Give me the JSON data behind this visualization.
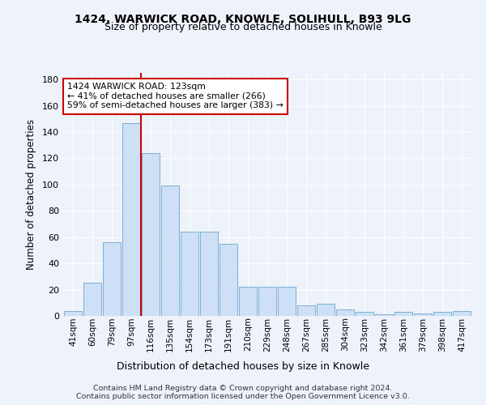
{
  "title_line1": "1424, WARWICK ROAD, KNOWLE, SOLIHULL, B93 9LG",
  "title_line2": "Size of property relative to detached houses in Knowle",
  "xlabel": "Distribution of detached houses by size in Knowle",
  "ylabel": "Number of detached properties",
  "categories": [
    "41sqm",
    "60sqm",
    "79sqm",
    "97sqm",
    "116sqm",
    "135sqm",
    "154sqm",
    "173sqm",
    "191sqm",
    "210sqm",
    "229sqm",
    "248sqm",
    "267sqm",
    "285sqm",
    "304sqm",
    "323sqm",
    "342sqm",
    "361sqm",
    "379sqm",
    "398sqm",
    "417sqm"
  ],
  "values": [
    4,
    25,
    56,
    147,
    124,
    99,
    64,
    64,
    55,
    22,
    22,
    22,
    8,
    9,
    5,
    3,
    1,
    3,
    2,
    3,
    4
  ],
  "bar_color": "#cde0f5",
  "bar_edge_color": "#7bafd4",
  "vline_x_index": 3.5,
  "vline_color": "#cc0000",
  "annotation_line1": "1424 WARWICK ROAD: 123sqm",
  "annotation_line2": "← 41% of detached houses are smaller (266)",
  "annotation_line3": "59% of semi-detached houses are larger (383) →",
  "annotation_box_color": "white",
  "annotation_box_edge": "#cc0000",
  "ylim": [
    0,
    185
  ],
  "yticks": [
    0,
    20,
    40,
    60,
    80,
    100,
    120,
    140,
    160,
    180
  ],
  "footer1": "Contains HM Land Registry data © Crown copyright and database right 2024.",
  "footer2": "Contains public sector information licensed under the Open Government Licence v3.0.",
  "bg_color": "#eef2fb",
  "grid_color": "#ffffff"
}
